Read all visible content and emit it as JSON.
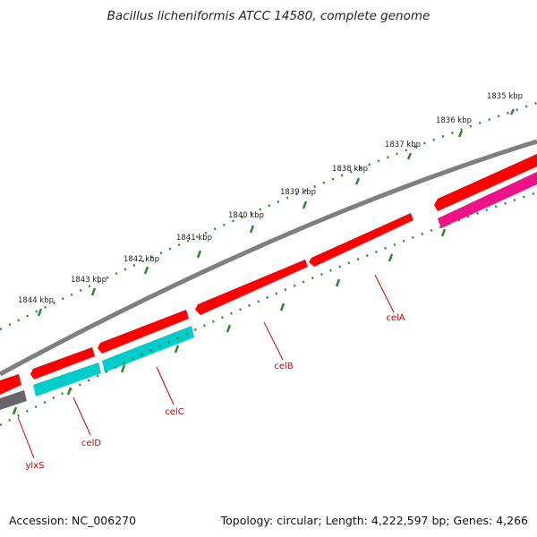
{
  "map": {
    "title": "Bacillus licheniformis ATCC 14580, complete genome",
    "accession": "Accession: NC_006270",
    "summary": "Topology: circular; Length: 4,222,597 bp; Genes: 4,266",
    "colors": {
      "genome_backbone": "#7f7f7f",
      "forward_cds": "#ff0000",
      "cds_cyan": "#00cccc",
      "cds_magenta": "#ee1188",
      "cds_gray": "#666666",
      "ticks": "#2a8a2a",
      "gene_label": "#cc0000"
    },
    "ticks": [
      "1835 kbp",
      "1836 kbp",
      "1837 kbp",
      "1838 kbp",
      "1839 kbp",
      "1840 kbp",
      "1841 kbp",
      "1842 kbp",
      "1843 kbp",
      "1844 kbp"
    ],
    "gene_labels": [
      "celA",
      "celB",
      "celC",
      "celD",
      "ylxS"
    ]
  }
}
